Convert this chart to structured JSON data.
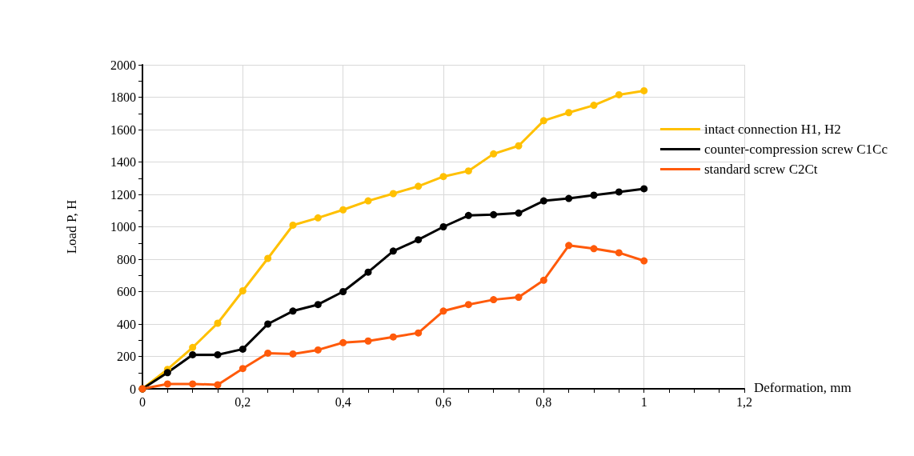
{
  "chart_data": {
    "type": "line",
    "xlabel": "Deformation, mm",
    "ylabel": "Load P, H",
    "x": [
      0,
      0.05,
      0.1,
      0.15,
      0.2,
      0.25,
      0.3,
      0.35,
      0.4,
      0.45,
      0.5,
      0.55,
      0.6,
      0.65,
      0.7,
      0.75,
      0.8,
      0.85,
      0.9,
      0.95,
      1
    ],
    "series": [
      {
        "name": "intact connection H1, H2",
        "color": "#ffc000",
        "values": [
          0,
          120,
          255,
          405,
          605,
          805,
          1010,
          1055,
          1105,
          1160,
          1205,
          1250,
          1310,
          1345,
          1450,
          1500,
          1655,
          1705,
          1750,
          1815,
          1840
        ]
      },
      {
        "name": "counter-compression screw C1Cc",
        "color": "#000000",
        "values": [
          0,
          100,
          210,
          210,
          245,
          400,
          480,
          520,
          600,
          720,
          850,
          920,
          1000,
          1070,
          1075,
          1085,
          1160,
          1175,
          1195,
          1215,
          1235
        ]
      },
      {
        "name": "standard screw C2Ct",
        "color": "#ff5a0a",
        "values": [
          0,
          30,
          30,
          25,
          125,
          220,
          215,
          240,
          285,
          295,
          320,
          345,
          480,
          520,
          550,
          565,
          670,
          885,
          865,
          840,
          790
        ]
      }
    ],
    "xlim": [
      0,
      1.2
    ],
    "xticks": [
      0,
      {
        "value": 0.2,
        "label": "0,2"
      },
      {
        "value": 0.4,
        "label": "0,4"
      },
      {
        "value": 0.6,
        "label": "0,6"
      },
      {
        "value": 0.8,
        "label": "0,8"
      },
      1,
      {
        "value": 1.2,
        "label": "1,2"
      }
    ],
    "ylim": [
      0,
      2000
    ],
    "yticks": [
      0,
      200,
      400,
      600,
      800,
      1000,
      1200,
      1400,
      1600,
      1800,
      2000
    ],
    "grid": true,
    "legend": "top right",
    "marker": "circle",
    "line_style": "solid"
  }
}
